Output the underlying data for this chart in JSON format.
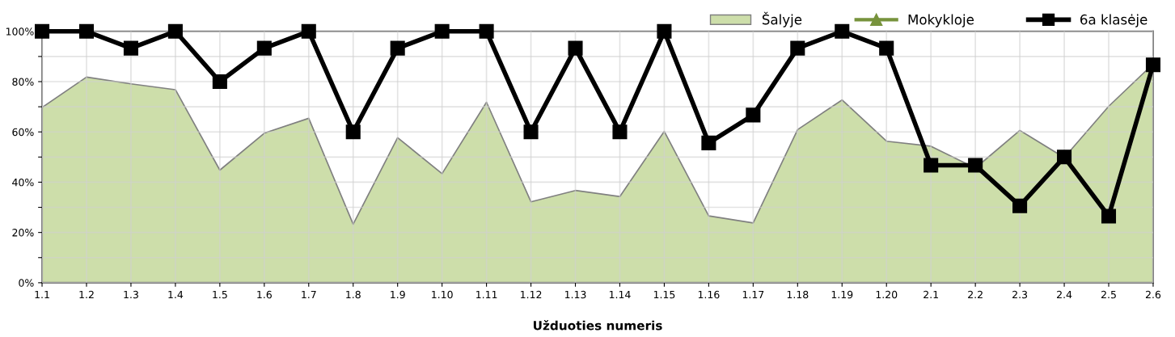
{
  "chart_data": {
    "type": "area",
    "xlabel": "Užduoties numeris",
    "categories": [
      "1.1",
      "1.2",
      "1.3",
      "1.4",
      "1.5",
      "1.6",
      "1.7",
      "1.8",
      "1.9",
      "1.10",
      "1.11",
      "1.12",
      "1.13",
      "1.14",
      "1.15",
      "1.16",
      "1.17",
      "1.18",
      "1.19",
      "1.20",
      "2.1",
      "2.2",
      "2.3",
      "2.4",
      "2.5",
      "2.6"
    ],
    "series": [
      {
        "name": "Šalyje",
        "color": "#cddeaa",
        "values": [
          69.7,
          81.8,
          79.1,
          76.8,
          44.8,
          59.5,
          65.4,
          23.3,
          57.7,
          43.4,
          71.8,
          32.2,
          36.7,
          34.3,
          60.2,
          26.6,
          23.8,
          60.9,
          72.7,
          56.3,
          54.3,
          45.6,
          60.6,
          49.8,
          70.2,
          87.0
        ]
      },
      {
        "name": "Mokykloje",
        "type": "line",
        "color": "#77933c",
        "marker": "triangle",
        "values": [
          null,
          null,
          null,
          null,
          null,
          null,
          null,
          null,
          null,
          null,
          null,
          null,
          null,
          null,
          null,
          null,
          null,
          null,
          null,
          null,
          null,
          null,
          null,
          null,
          null,
          null
        ]
      },
      {
        "name": "6a klasėje",
        "type": "line",
        "color": "#000000",
        "marker": "square",
        "values": [
          100,
          100,
          93.3,
          100,
          80,
          93.3,
          100,
          60,
          93.3,
          100,
          100,
          60,
          93.3,
          60,
          100,
          55.6,
          66.7,
          93.3,
          100,
          93.3,
          46.7,
          46.7,
          30.6,
          50,
          26.5,
          86.7
        ]
      }
    ],
    "ylim": [
      0,
      100
    ],
    "yticks": [
      {
        "value": 0,
        "label": "0%"
      },
      {
        "value": 10,
        "label": null
      },
      {
        "value": 20,
        "label": "20%"
      },
      {
        "value": 30,
        "label": null
      },
      {
        "value": 40,
        "label": "40%"
      },
      {
        "value": 50,
        "label": null
      },
      {
        "value": 60,
        "label": "60%"
      },
      {
        "value": 70,
        "label": null
      },
      {
        "value": 80,
        "label": "80%"
      },
      {
        "value": 90,
        "label": null
      },
      {
        "value": 100,
        "label": "100%"
      }
    ],
    "grid": true,
    "legend": "top right",
    "line_style": "solid"
  }
}
